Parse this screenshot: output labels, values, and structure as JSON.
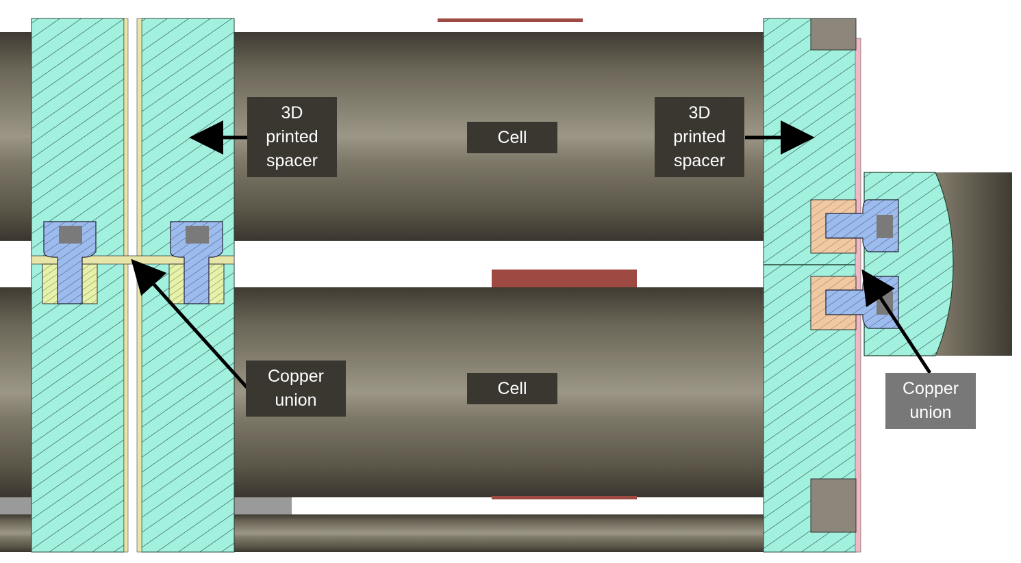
{
  "diagram": {
    "labels": {
      "spacer_left": [
        "3D",
        "printed",
        "spacer"
      ],
      "spacer_right": [
        "3D",
        "printed",
        "spacer"
      ],
      "cell_top": "Cell",
      "cell_bottom": "Cell",
      "copper_left": [
        "Copper",
        "union"
      ],
      "copper_right": [
        "Copper",
        "union"
      ]
    },
    "colors": {
      "spacer_fill": "#a2f1df",
      "hatch": "#2a4a44",
      "cell_body": "#7a7567",
      "cell_dark": "#3f3b33",
      "copper_strip": "#e7e6a8",
      "bolt": "#9cbcef",
      "nut": "#e8cdb0",
      "tab": "#9e4a42",
      "label_dark": "#3a3731",
      "label_grey": "#787878",
      "pink_plate": "#f1b8c4"
    }
  }
}
